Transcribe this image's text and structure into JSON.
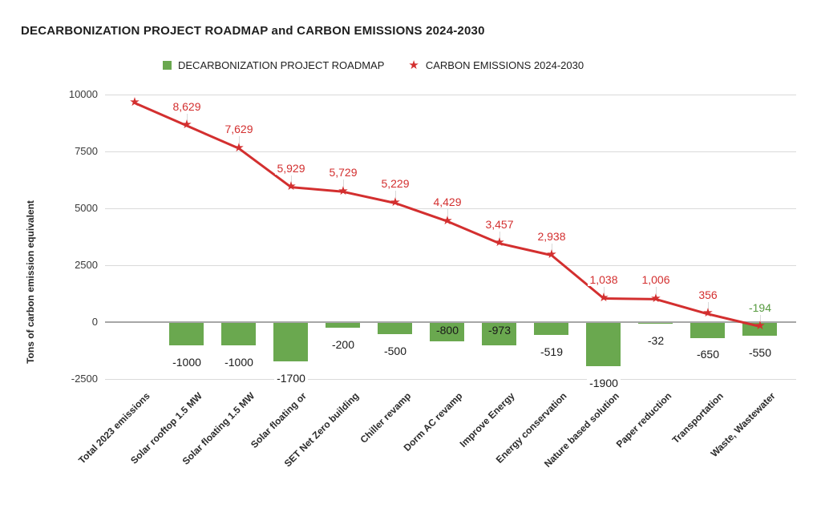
{
  "title": "DECARBONIZATION PROJECT ROADMAP and CARBON EMISSIONS 2024-2030",
  "legend": [
    {
      "label": "DECARBONIZATION PROJECT ROADMAP",
      "marker": "square-icon",
      "color": "#6aa84f"
    },
    {
      "label": "CARBON EMISSIONS 2024-2030",
      "marker": "star-icon",
      "color": "#d32f2f"
    }
  ],
  "y_axis": {
    "title": "Tons of carbon emission equivalent",
    "ticks": [
      10000,
      7500,
      5000,
      2500,
      0,
      -2500
    ]
  },
  "colors": {
    "bar_green": "#6aa84f",
    "line_red": "#d32f2f",
    "negative_label_green": "#569a3f",
    "gridline": "#dadada",
    "zero_axis": "#a6a6a6",
    "bar_label": "#1a1a1a"
  },
  "chart_data": {
    "type": "combo",
    "subtypes": [
      "bar",
      "line"
    ],
    "title": "DECARBONIZATION PROJECT ROADMAP and CARBON EMISSIONS 2024-2030",
    "ylabel": "Tons of carbon emission equivalent",
    "ylim": [
      -2500,
      10000
    ],
    "grid": true,
    "legend_position": "top",
    "categories": [
      "Total 2023 emissions",
      "Solar rooftop 1.5 MW",
      "Solar floating 1.5 MW",
      "Solar floating or",
      "SET Net Zero building",
      "Chiller revamp",
      "Dorm AC revamp",
      "Improve Energy",
      "Energy conservation",
      "Nature based solution",
      "Paper reduction",
      "Transportation",
      "Waste, Wastewater"
    ],
    "series": [
      {
        "name": "DECARBONIZATION PROJECT ROADMAP",
        "type": "bar",
        "values": [
          null,
          -1000,
          -1000,
          -1700,
          -200,
          -500,
          -800,
          -973,
          -519,
          -1900,
          -32,
          -650,
          -550
        ],
        "data_labels": [
          "",
          "-1000",
          "-1000",
          "-1700",
          "-200",
          "-500",
          "-800",
          "-973",
          "-519",
          "-1900",
          "-32",
          "-650",
          "-550"
        ],
        "label_placement": [
          "",
          "below",
          "below",
          "below",
          "below",
          "below",
          "inside",
          "inside",
          "below",
          "below",
          "below",
          "below",
          "below"
        ]
      },
      {
        "name": "CARBON EMISSIONS 2024-2030",
        "type": "line",
        "values": [
          9629,
          8629,
          7629,
          5929,
          5729,
          5229,
          4429,
          3457,
          2938,
          1038,
          1006,
          356,
          -194
        ],
        "data_labels": [
          "",
          "8,629",
          "7,629",
          "5,929",
          "5,729",
          "5,229",
          "4,429",
          "3,457",
          "2,938",
          "1,038",
          "1,006",
          "356",
          "-194"
        ]
      }
    ]
  }
}
